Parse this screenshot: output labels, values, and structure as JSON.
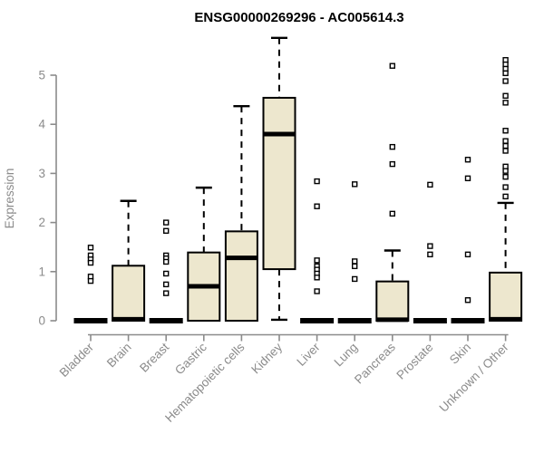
{
  "chart_data": {
    "type": "boxplot",
    "title": "ENSG00000269296 - AC005614.3",
    "ylabel": "Expression",
    "xlabel": "",
    "ylim": [
      0,
      5.9
    ],
    "yticks": [
      0,
      1,
      2,
      3,
      4,
      5
    ],
    "grid": false,
    "legend": false,
    "box_fill": "#EDE7CE",
    "box_stroke": "#000000",
    "axis_color": "#8B8B8B",
    "categories": [
      "Bladder",
      "Brain",
      "Breast",
      "Gastric",
      "Hematopoietic cells",
      "Kidney",
      "Liver",
      "Lung",
      "Pancreas",
      "Prostate",
      "Skin",
      "Unknown / Other"
    ],
    "boxes": [
      {
        "category": "Bladder",
        "whisker_low": 0,
        "q1": 0,
        "median": 0,
        "q3": 0,
        "whisker_high": 0,
        "outliers": [
          1.49,
          1.33,
          1.25,
          1.18,
          0.9,
          0.81
        ]
      },
      {
        "category": "Brain",
        "whisker_low": 0,
        "q1": 0,
        "median": 0.03,
        "q3": 1.12,
        "whisker_high": 2.44,
        "outliers": []
      },
      {
        "category": "Breast",
        "whisker_low": 0,
        "q1": 0,
        "median": 0,
        "q3": 0,
        "whisker_high": 0,
        "outliers": [
          2.0,
          1.83,
          1.33,
          1.27,
          1.2,
          0.96,
          0.74,
          0.56
        ]
      },
      {
        "category": "Gastric",
        "whisker_low": 0,
        "q1": 0,
        "median": 0.7,
        "q3": 1.39,
        "whisker_high": 2.71,
        "outliers": []
      },
      {
        "category": "Hematopoietic cells",
        "whisker_low": 0,
        "q1": 0,
        "median": 1.28,
        "q3": 1.82,
        "whisker_high": 4.37,
        "outliers": []
      },
      {
        "category": "Kidney",
        "whisker_low": 0.02,
        "q1": 1.05,
        "median": 3.8,
        "q3": 4.54,
        "whisker_high": 5.76,
        "outliers": []
      },
      {
        "category": "Liver",
        "whisker_low": 0,
        "q1": 0,
        "median": 0,
        "q3": 0,
        "whisker_high": 0,
        "outliers": [
          2.84,
          2.33,
          1.23,
          1.11,
          1.04,
          0.96,
          0.88,
          0.6
        ]
      },
      {
        "category": "Lung",
        "whisker_low": 0,
        "q1": 0,
        "median": 0,
        "q3": 0,
        "whisker_high": 0,
        "outliers": [
          2.78,
          1.21,
          1.11,
          0.85
        ]
      },
      {
        "category": "Pancreas",
        "whisker_low": 0,
        "q1": 0,
        "median": 0.02,
        "q3": 0.8,
        "whisker_high": 1.43,
        "outliers": [
          5.19,
          3.54,
          3.19,
          2.18
        ]
      },
      {
        "category": "Prostate",
        "whisker_low": 0,
        "q1": 0,
        "median": 0,
        "q3": 0,
        "whisker_high": 0,
        "outliers": [
          2.77,
          1.52,
          1.35
        ]
      },
      {
        "category": "Skin",
        "whisker_low": 0,
        "q1": 0,
        "median": 0,
        "q3": 0,
        "whisker_high": 0,
        "outliers": [
          3.28,
          2.9,
          1.35,
          0.42
        ]
      },
      {
        "category": "Unknown / Other",
        "whisker_low": 0,
        "q1": 0,
        "median": 0.03,
        "q3": 0.98,
        "whisker_high": 2.4,
        "outliers": [
          5.31,
          5.22,
          5.13,
          5.04,
          4.88,
          4.58,
          4.44,
          3.87,
          3.66,
          3.56,
          3.46,
          3.14,
          3.05,
          2.93,
          2.72,
          2.53
        ]
      }
    ]
  }
}
